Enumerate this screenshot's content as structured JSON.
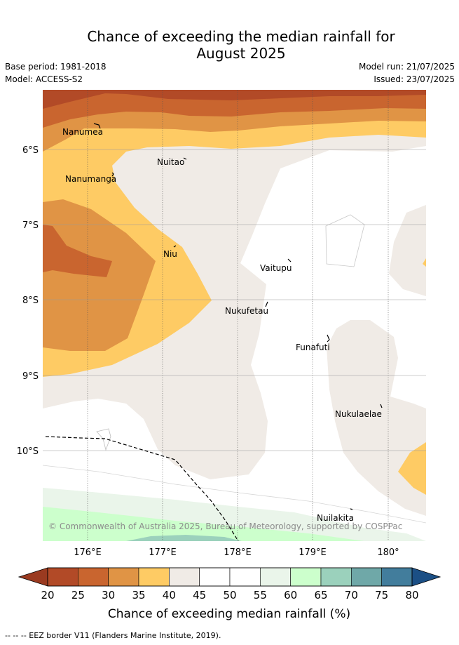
{
  "title_line1": "Chance of exceeding the median rainfall for",
  "title_line2": "August 2025",
  "base_period": "Base period: 1981-2018",
  "model": "Model: ACCESS-S2",
  "model_run": "Model run: 21/07/2025",
  "issued": "Issued: 23/07/2025",
  "map": {
    "lon_ticks": [
      "176°E",
      "177°E",
      "178°E",
      "179°E",
      "180°"
    ],
    "lat_ticks": [
      "6°S",
      "7°S",
      "8°S",
      "9°S",
      "10°S"
    ],
    "islands": [
      "Nanumea",
      "Nuitao",
      "Nanumanga",
      "Niu",
      "Vaitupu",
      "Nukufetau",
      "Funafuti",
      "Nukulaelae",
      "Nuilakita"
    ],
    "copyright": "© Commonwealth of Australia 2025, Bureau of Meteorology, supported by COSPPac"
  },
  "colorbar": {
    "ticks": [
      "20",
      "25",
      "30",
      "35",
      "40",
      "45",
      "50",
      "55",
      "60",
      "65",
      "70",
      "75",
      "80"
    ],
    "colors": [
      "#b24a27",
      "#c9652f",
      "#e09445",
      "#fecb64",
      "#f0ebe6",
      "#ffffff",
      "#ffffff",
      "#eaf5ea",
      "#ccffcc",
      "#9bd1bc",
      "#6fa8a8",
      "#427d9c"
    ],
    "under_color": "#9a3a20",
    "over_color": "#1b4f85",
    "label": "Chance of exceeding median rainfall (%)"
  },
  "footer": "--  --  -- EEZ border V11 (Flanders Marine Institute, 2019)."
}
